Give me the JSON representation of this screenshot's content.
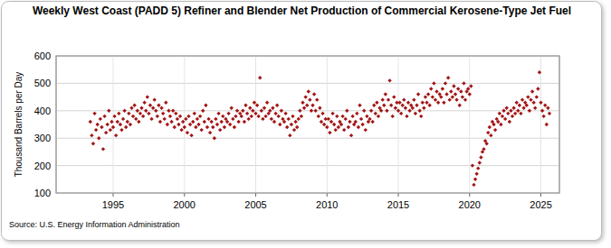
{
  "chart_data": {
    "type": "scatter",
    "title": "Weekly West Coast (PADD 5)  Refiner and Blender Net Production of Commercial Kerosene-Type Jet Fuel",
    "y_label": "Thousand Barrels per Day",
    "source": "Source: U.S. Energy Information Administration",
    "color": "#a31515",
    "marker": "diamond",
    "grid": true,
    "xlim": [
      1991,
      2026.3
    ],
    "xticks": [
      1995,
      2000,
      2005,
      2010,
      2015,
      2020,
      2025
    ],
    "ylim": [
      100,
      600
    ],
    "yticks": [
      100,
      200,
      300,
      400,
      500,
      600
    ],
    "x": [
      1993.4,
      1993.5,
      1993.6,
      1993.7,
      1993.8,
      1993.9,
      1994.0,
      1994.1,
      1994.2,
      1994.3,
      1994.4,
      1994.5,
      1994.6,
      1994.7,
      1994.8,
      1994.9,
      1995.0,
      1995.1,
      1995.2,
      1995.3,
      1995.4,
      1995.5,
      1995.6,
      1995.7,
      1995.8,
      1995.9,
      1996.0,
      1996.1,
      1996.2,
      1996.3,
      1996.4,
      1996.5,
      1996.6,
      1996.7,
      1996.8,
      1996.9,
      1997.0,
      1997.1,
      1997.2,
      1997.3,
      1997.4,
      1997.5,
      1997.6,
      1997.7,
      1997.8,
      1997.9,
      1998.0,
      1998.1,
      1998.2,
      1998.3,
      1998.4,
      1998.5,
      1998.6,
      1998.7,
      1998.8,
      1998.9,
      1999.0,
      1999.1,
      1999.2,
      1999.3,
      1999.4,
      1999.5,
      1999.6,
      1999.7,
      1999.8,
      1999.9,
      2000.0,
      2000.1,
      2000.2,
      2000.3,
      2000.4,
      2000.5,
      2000.6,
      2000.7,
      2000.8,
      2000.9,
      2001.0,
      2001.1,
      2001.2,
      2001.3,
      2001.4,
      2001.5,
      2001.6,
      2001.7,
      2001.8,
      2001.9,
      2002.0,
      2002.1,
      2002.2,
      2002.3,
      2002.4,
      2002.5,
      2002.6,
      2002.7,
      2002.8,
      2002.9,
      2003.0,
      2003.1,
      2003.2,
      2003.3,
      2003.4,
      2003.5,
      2003.6,
      2003.7,
      2003.8,
      2003.9,
      2004.0,
      2004.1,
      2004.2,
      2004.3,
      2004.4,
      2004.5,
      2004.6,
      2004.7,
      2004.8,
      2004.9,
      2005.0,
      2005.1,
      2005.2,
      2005.3,
      2005.4,
      2005.5,
      2005.6,
      2005.7,
      2005.8,
      2005.9,
      2006.0,
      2006.1,
      2006.2,
      2006.3,
      2006.4,
      2006.5,
      2006.6,
      2006.7,
      2006.8,
      2006.9,
      2007.0,
      2007.1,
      2007.2,
      2007.3,
      2007.4,
      2007.5,
      2007.6,
      2007.7,
      2007.8,
      2007.9,
      2008.0,
      2008.1,
      2008.2,
      2008.3,
      2008.4,
      2008.5,
      2008.6,
      2008.7,
      2008.8,
      2008.9,
      2009.0,
      2009.1,
      2009.2,
      2009.3,
      2009.4,
      2009.5,
      2009.6,
      2009.7,
      2009.8,
      2009.9,
      2010.0,
      2010.1,
      2010.2,
      2010.3,
      2010.4,
      2010.5,
      2010.6,
      2010.7,
      2010.8,
      2010.9,
      2011.0,
      2011.1,
      2011.2,
      2011.3,
      2011.4,
      2011.5,
      2011.6,
      2011.7,
      2011.8,
      2011.9,
      2012.0,
      2012.1,
      2012.2,
      2012.3,
      2012.4,
      2012.5,
      2012.6,
      2012.7,
      2012.8,
      2012.9,
      2013.0,
      2013.1,
      2013.2,
      2013.3,
      2013.4,
      2013.5,
      2013.6,
      2013.7,
      2013.8,
      2013.9,
      2014.0,
      2014.1,
      2014.2,
      2014.3,
      2014.4,
      2014.5,
      2014.6,
      2014.7,
      2014.8,
      2014.9,
      2015.0,
      2015.1,
      2015.2,
      2015.3,
      2015.4,
      2015.5,
      2015.6,
      2015.7,
      2015.8,
      2015.9,
      2016.0,
      2016.1,
      2016.2,
      2016.3,
      2016.4,
      2016.5,
      2016.6,
      2016.7,
      2016.8,
      2016.9,
      2017.0,
      2017.1,
      2017.2,
      2017.3,
      2017.4,
      2017.5,
      2017.6,
      2017.7,
      2017.8,
      2017.9,
      2018.0,
      2018.1,
      2018.2,
      2018.3,
      2018.4,
      2018.5,
      2018.6,
      2018.7,
      2018.8,
      2018.9,
      2019.0,
      2019.1,
      2019.2,
      2019.3,
      2019.4,
      2019.5,
      2019.6,
      2019.7,
      2019.8,
      2019.9,
      2020.0,
      2020.1,
      2020.2,
      2020.3,
      2020.4,
      2020.5,
      2020.6,
      2020.7,
      2020.8,
      2020.9,
      2021.0,
      2021.1,
      2021.2,
      2021.3,
      2021.4,
      2021.5,
      2021.6,
      2021.7,
      2021.8,
      2021.9,
      2022.0,
      2022.1,
      2022.2,
      2022.3,
      2022.4,
      2022.5,
      2022.6,
      2022.7,
      2022.8,
      2022.9,
      2023.0,
      2023.1,
      2023.2,
      2023.3,
      2023.4,
      2023.5,
      2023.6,
      2023.7,
      2023.8,
      2023.9,
      2024.0,
      2024.1,
      2024.2,
      2024.3,
      2024.4,
      2024.5,
      2024.6,
      2024.7,
      2024.8,
      2024.9,
      2025.0,
      2025.1,
      2025.2,
      2025.3,
      2025.4,
      2025.5,
      2025.6
    ],
    "values": [
      360,
      310,
      280,
      390,
      330,
      350,
      300,
      370,
      340,
      260,
      380,
      320,
      350,
      400,
      330,
      360,
      340,
      380,
      310,
      360,
      390,
      350,
      330,
      370,
      400,
      340,
      360,
      390,
      350,
      410,
      380,
      420,
      370,
      400,
      360,
      390,
      410,
      380,
      430,
      400,
      450,
      390,
      420,
      370,
      410,
      440,
      400,
      380,
      420,
      360,
      410,
      390,
      370,
      430,
      350,
      400,
      380,
      360,
      400,
      340,
      390,
      370,
      350,
      380,
      330,
      360,
      340,
      370,
      320,
      380,
      350,
      310,
      360,
      390,
      340,
      370,
      350,
      380,
      330,
      400,
      360,
      420,
      340,
      370,
      320,
      360,
      340,
      300,
      370,
      350,
      390,
      330,
      360,
      380,
      340,
      370,
      360,
      390,
      350,
      410,
      370,
      340,
      380,
      400,
      360,
      390,
      380,
      400,
      360,
      420,
      390,
      370,
      410,
      380,
      400,
      430,
      390,
      420,
      380,
      520,
      400,
      370,
      410,
      380,
      430,
      390,
      400,
      370,
      410,
      360,
      390,
      420,
      380,
      350,
      400,
      370,
      360,
      390,
      340,
      370,
      310,
      350,
      380,
      330,
      360,
      340,
      370,
      400,
      380,
      430,
      410,
      450,
      420,
      470,
      440,
      400,
      420,
      460,
      400,
      440,
      380,
      410,
      360,
      390,
      350,
      370,
      340,
      370,
      320,
      360,
      390,
      350,
      330,
      380,
      340,
      360,
      350,
      380,
      330,
      370,
      400,
      340,
      360,
      310,
      380,
      350,
      360,
      390,
      340,
      420,
      370,
      350,
      400,
      330,
      380,
      360,
      370,
      400,
      360,
      420,
      390,
      430,
      380,
      410,
      400,
      440,
      420,
      460,
      400,
      440,
      510,
      420,
      380,
      450,
      410,
      430,
      400,
      430,
      390,
      420,
      440,
      410,
      380,
      430,
      400,
      420,
      410,
      440,
      390,
      420,
      460,
      400,
      380,
      430,
      410,
      450,
      430,
      460,
      420,
      480,
      450,
      500,
      440,
      470,
      430,
      460,
      450,
      480,
      430,
      500,
      460,
      520,
      440,
      470,
      450,
      490,
      460,
      440,
      480,
      420,
      470,
      450,
      500,
      440,
      470,
      480,
      460,
      490,
      200,
      130,
      150,
      170,
      190,
      210,
      230,
      250,
      260,
      290,
      280,
      320,
      340,
      310,
      360,
      350,
      330,
      370,
      360,
      390,
      350,
      380,
      400,
      370,
      410,
      390,
      360,
      400,
      380,
      410,
      390,
      430,
      400,
      420,
      390,
      440,
      410,
      430,
      420,
      450,
      400,
      440,
      470,
      430,
      410,
      450,
      480,
      540,
      430,
      400,
      380,
      420,
      350,
      410,
      390
    ]
  }
}
